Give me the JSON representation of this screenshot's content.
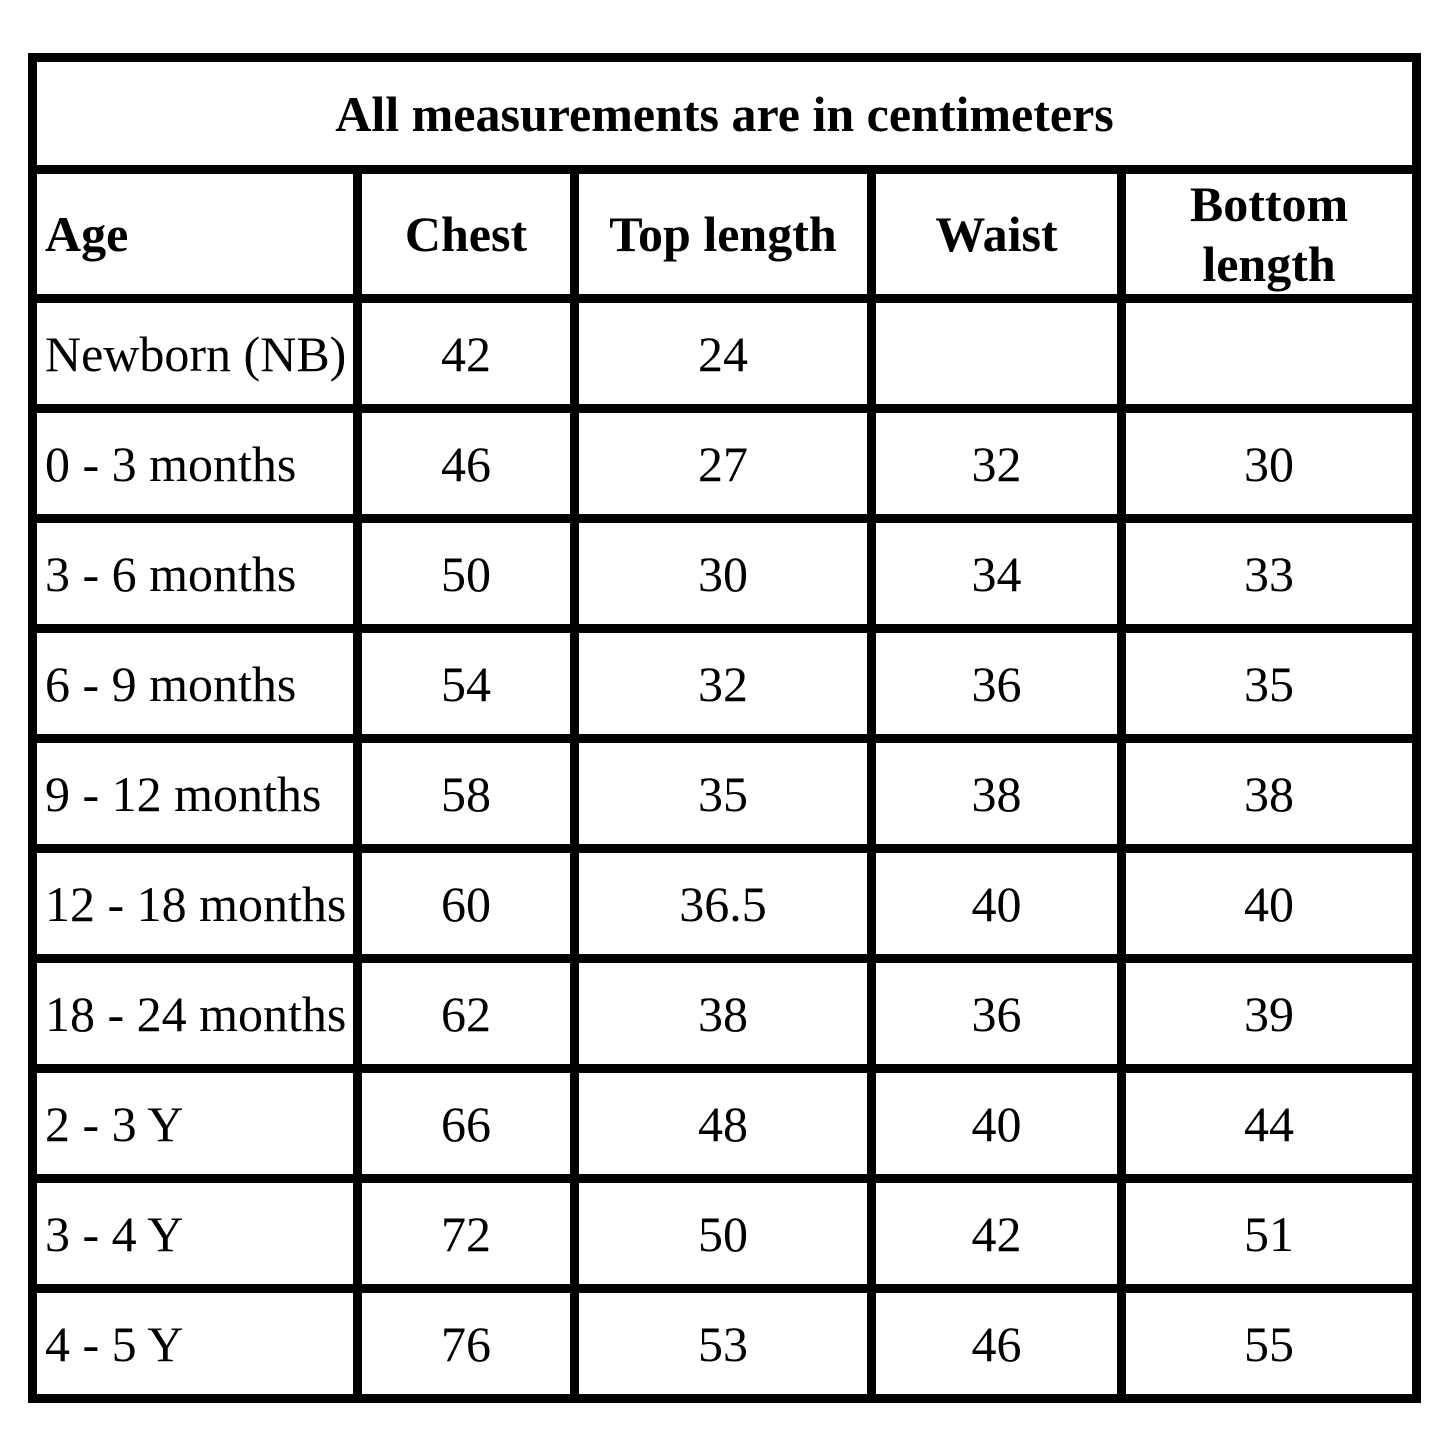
{
  "page": {
    "background_color": "#ffffff",
    "grid_color": "#000000",
    "text_color": "#000000"
  },
  "table": {
    "caption": "All measurements are in centimeters",
    "columns": [
      {
        "key": "age",
        "label": "Age"
      },
      {
        "key": "chest",
        "label": "Chest"
      },
      {
        "key": "top_length",
        "label": "Top length"
      },
      {
        "key": "waist",
        "label": "Waist"
      },
      {
        "key": "bottom_length",
        "label": "Bottom length"
      }
    ],
    "rows": [
      [
        "Newborn (NB)",
        "42",
        "24",
        "",
        ""
      ],
      [
        "0 - 3 months",
        "46",
        "27",
        "32",
        "30"
      ],
      [
        "3 - 6 months",
        "50",
        "30",
        "34",
        "33"
      ],
      [
        "6 - 9 months",
        "54",
        "32",
        "36",
        "35"
      ],
      [
        "9 - 12 months",
        "58",
        "35",
        "38",
        "38"
      ],
      [
        "12 - 18 months",
        "60",
        "36.5",
        "40",
        "40"
      ],
      [
        "18 - 24 months",
        "62",
        "38",
        "36",
        "39"
      ],
      [
        "2 - 3 Y",
        "66",
        "48",
        "40",
        "44"
      ],
      [
        "3 - 4 Y",
        "72",
        "50",
        "42",
        "51"
      ],
      [
        "4 - 5 Y",
        "76",
        "53",
        "46",
        "55"
      ]
    ]
  }
}
